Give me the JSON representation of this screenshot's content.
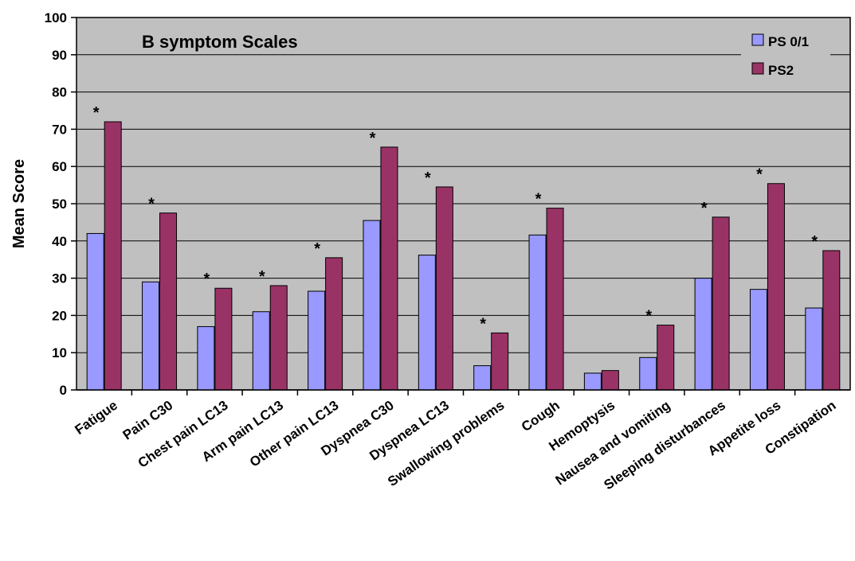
{
  "chart_data": {
    "type": "bar",
    "title": "B symptom Scales",
    "xlabel": "",
    "ylabel": "Mean Score",
    "ylim": [
      0,
      100
    ],
    "yticks": [
      0,
      10,
      20,
      30,
      40,
      50,
      60,
      70,
      80,
      90,
      100
    ],
    "grid": true,
    "legend_position": "top-right",
    "plot_background": "#c0c0c0",
    "categories": [
      "Fatigue",
      "Pain C30",
      "Chest pain LC13",
      "Arm pain LC13",
      "Other pain LC13",
      "Dyspnea C30",
      "Dyspnea LC13",
      "Swallowing problems",
      "Cough",
      "Hemoptysis",
      "Nausea and vomiting",
      "Sleeping disturbances",
      "Appetite loss",
      "Constipation"
    ],
    "series": [
      {
        "name": "PS 0/1",
        "color": "#9999ff",
        "values": [
          42,
          29,
          17,
          21,
          26.5,
          45.5,
          36.2,
          6.5,
          41.6,
          4.5,
          8.7,
          30,
          27,
          22
        ]
      },
      {
        "name": "PS2",
        "color": "#993366",
        "values": [
          72,
          47.5,
          27.3,
          28,
          35.5,
          65.2,
          54.5,
          15.3,
          48.8,
          5.2,
          17.4,
          46.4,
          55.4,
          37.4
        ]
      }
    ],
    "significance_marker": "*",
    "significant": [
      true,
      true,
      true,
      true,
      true,
      true,
      true,
      true,
      true,
      false,
      true,
      true,
      true,
      true
    ]
  }
}
